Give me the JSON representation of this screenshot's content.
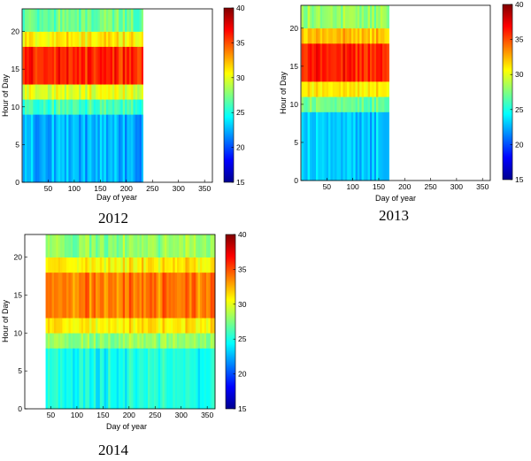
{
  "chart_data": [
    {
      "type": "heatmap",
      "title": "2012",
      "xlabel": "Day of year",
      "ylabel": "Hour of Day",
      "xlim": [
        0,
        365
      ],
      "ylim": [
        0,
        23
      ],
      "x_ticks": [
        50,
        100,
        150,
        200,
        250,
        300,
        350
      ],
      "y_ticks": [
        0,
        5,
        10,
        15,
        20
      ],
      "data_x_range": [
        1,
        232
      ],
      "colorbar": {
        "min": 15,
        "max": 40,
        "ticks": [
          15,
          20,
          25,
          30,
          35,
          40
        ],
        "colormap": "jet"
      },
      "hourly_profile": [
        {
          "hour_from": 0,
          "hour_to": 9,
          "approx_value": 22.5
        },
        {
          "hour_from": 9,
          "hour_to": 11,
          "approx_value": 26
        },
        {
          "hour_from": 11,
          "hour_to": 13,
          "approx_value": 30
        },
        {
          "hour_from": 13,
          "hour_to": 18,
          "approx_value": 36
        },
        {
          "hour_from": 18,
          "hour_to": 20,
          "approx_value": 31
        },
        {
          "hour_from": 20,
          "hour_to": 23,
          "approx_value": 27
        }
      ]
    },
    {
      "type": "heatmap",
      "title": "2013",
      "xlabel": "Day of year",
      "ylabel": "Hour of Day",
      "xlim": [
        0,
        365
      ],
      "ylim": [
        0,
        23
      ],
      "x_ticks": [
        50,
        100,
        150,
        200,
        250,
        300,
        350
      ],
      "y_ticks": [
        0,
        5,
        10,
        15,
        20
      ],
      "data_x_range": [
        1,
        170
      ],
      "colorbar": {
        "min": 15,
        "max": 40,
        "ticks": [
          15,
          20,
          25,
          30,
          35,
          40
        ],
        "colormap": "jet"
      },
      "hourly_profile": [
        {
          "hour_from": 0,
          "hour_to": 9,
          "approx_value": 23
        },
        {
          "hour_from": 9,
          "hour_to": 11,
          "approx_value": 27
        },
        {
          "hour_from": 11,
          "hour_to": 13,
          "approx_value": 31
        },
        {
          "hour_from": 13,
          "hour_to": 18,
          "approx_value": 36
        },
        {
          "hour_from": 18,
          "hour_to": 20,
          "approx_value": 32
        },
        {
          "hour_from": 20,
          "hour_to": 23,
          "approx_value": 28
        }
      ]
    },
    {
      "type": "heatmap",
      "title": "2014",
      "xlabel": "Day of year",
      "ylabel": "Hour of Day",
      "xlim": [
        0,
        365
      ],
      "ylim": [
        0,
        23
      ],
      "x_ticks": [
        50,
        100,
        150,
        200,
        250,
        300,
        350
      ],
      "y_ticks": [
        0,
        5,
        10,
        15,
        20
      ],
      "data_x_range": [
        40,
        365
      ],
      "colorbar": {
        "min": 15,
        "max": 40,
        "ticks": [
          15,
          20,
          25,
          30,
          35,
          40
        ],
        "colormap": "jet"
      },
      "hourly_profile": [
        {
          "hour_from": 0,
          "hour_to": 8,
          "approx_value": 25
        },
        {
          "hour_from": 8,
          "hour_to": 10,
          "approx_value": 28
        },
        {
          "hour_from": 10,
          "hour_to": 12,
          "approx_value": 31
        },
        {
          "hour_from": 12,
          "hour_to": 18,
          "approx_value": 34
        },
        {
          "hour_from": 18,
          "hour_to": 20,
          "approx_value": 31
        },
        {
          "hour_from": 20,
          "hour_to": 23,
          "approx_value": 28
        }
      ]
    }
  ]
}
